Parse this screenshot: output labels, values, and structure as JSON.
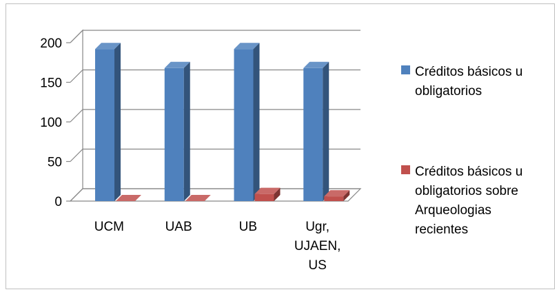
{
  "chart_data": {
    "type": "bar",
    "style": "3d-clustered-column",
    "categories": [
      "UCM",
      "UAB",
      "UB",
      "Ugr, UJAEN, US"
    ],
    "category_lines": [
      [
        "UCM"
      ],
      [
        "UAB"
      ],
      [
        "UB"
      ],
      [
        "Ugr,",
        "UJAEN,",
        "US"
      ]
    ],
    "series": [
      {
        "name": "Créditos básicos u obligatorios",
        "name_lines": [
          "Créditos básicos u",
          "obligatorios"
        ],
        "values": [
          192,
          168,
          192,
          168
        ],
        "color": "#4f81bd"
      },
      {
        "name": "Créditos básicos u obligatorios sobre Arqueologias recientes",
        "name_lines": [
          "Créditos básicos u",
          "obligatorios sobre",
          "Arqueologias",
          "recientes"
        ],
        "values": [
          0,
          0,
          9,
          6
        ],
        "color": "#c0504d"
      }
    ],
    "yticks": [
      0,
      50,
      100,
      150,
      200
    ],
    "ylim": [
      0,
      200
    ],
    "grid": true,
    "legend": "right"
  }
}
